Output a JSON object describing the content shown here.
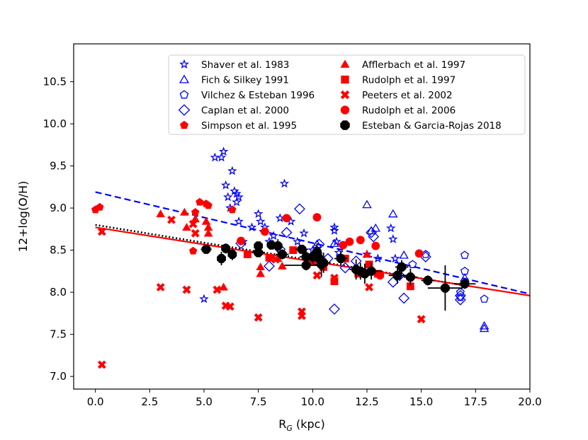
{
  "chart_data": {
    "type": "scatter",
    "title": "",
    "xlabel_main": "R",
    "xlabel_sub": "G",
    "xlabel_unit": " (kpc)",
    "ylabel": "12+log(O/H)",
    "xlim": [
      -1.0,
      20.0
    ],
    "ylim": [
      6.85,
      10.95
    ],
    "xticks": [
      0.0,
      2.5,
      5.0,
      7.5,
      10.0,
      12.5,
      15.0,
      17.5,
      20.0
    ],
    "xtick_labels": [
      "0.0",
      "2.5",
      "5.0",
      "7.5",
      "10.0",
      "12.5",
      "15.0",
      "17.5",
      "20.0"
    ],
    "yticks": [
      7.0,
      7.5,
      8.0,
      8.5,
      9.0,
      9.5,
      10.0,
      10.5
    ],
    "ytick_labels": [
      "7.0",
      "7.5",
      "8.0",
      "8.5",
      "9.0",
      "9.5",
      "10.0",
      "10.5"
    ],
    "legend_position": "top-center",
    "series": [
      {
        "name": "Shaver et al. 1983",
        "marker": "star",
        "color": "#0000ff",
        "filled": false,
        "points": [
          [
            5.5,
            9.6
          ],
          [
            5.8,
            9.6
          ],
          [
            5.9,
            9.67
          ],
          [
            6.0,
            9.27
          ],
          [
            6.1,
            9.13
          ],
          [
            6.2,
            9.0
          ],
          [
            6.3,
            9.44
          ],
          [
            6.4,
            9.2
          ],
          [
            6.5,
            9.17
          ],
          [
            6.5,
            9.07
          ],
          [
            6.6,
            9.13
          ],
          [
            6.6,
            8.84
          ],
          [
            6.8,
            8.6
          ],
          [
            7.2,
            8.77
          ],
          [
            7.5,
            8.93
          ],
          [
            7.6,
            8.84
          ],
          [
            7.8,
            8.77
          ],
          [
            8.0,
            8.6
          ],
          [
            8.2,
            8.67
          ],
          [
            8.5,
            8.88
          ],
          [
            8.7,
            9.29
          ],
          [
            9.0,
            8.84
          ],
          [
            9.3,
            8.6
          ],
          [
            9.6,
            8.7
          ],
          [
            10.0,
            8.5
          ],
          [
            10.2,
            8.4
          ],
          [
            11.0,
            8.73
          ],
          [
            11.0,
            8.77
          ],
          [
            11.1,
            8.6
          ],
          [
            11.2,
            8.47
          ],
          [
            11.3,
            8.41
          ],
          [
            12.5,
            8.45
          ],
          [
            13.0,
            8.4
          ],
          [
            13.6,
            8.76
          ],
          [
            13.7,
            8.63
          ],
          [
            13.8,
            8.4
          ],
          [
            5.0,
            7.92
          ]
        ]
      },
      {
        "name": "Fich & Silkey 1991",
        "marker": "triangle",
        "color": "#0000ff",
        "filled": false,
        "points": [
          [
            12.5,
            9.04
          ],
          [
            12.7,
            8.73
          ],
          [
            12.9,
            8.76
          ],
          [
            13.7,
            8.93
          ],
          [
            14.2,
            8.44
          ],
          [
            17.0,
            8.17
          ],
          [
            17.9,
            7.6
          ],
          [
            17.9,
            7.57
          ],
          [
            11.0,
            8.58
          ],
          [
            10.2,
            8.57
          ]
        ]
      },
      {
        "name": "Vilchez & Esteban 1996",
        "marker": "pentagon",
        "color": "#0000ff",
        "filled": false,
        "points": [
          [
            17.0,
            8.44
          ],
          [
            17.0,
            8.25
          ],
          [
            16.8,
            8.0
          ],
          [
            17.9,
            7.92
          ],
          [
            16.8,
            7.94
          ],
          [
            15.2,
            8.45
          ],
          [
            14.6,
            8.33
          ],
          [
            12.5,
            8.25
          ]
        ]
      },
      {
        "name": "Caplan et al. 2000",
        "marker": "diamond",
        "color": "#0000ff",
        "filled": false,
        "points": [
          [
            6.7,
            8.58
          ],
          [
            8.0,
            8.31
          ],
          [
            8.5,
            8.51
          ],
          [
            8.8,
            8.71
          ],
          [
            9.4,
            8.99
          ],
          [
            10.3,
            8.57
          ],
          [
            10.7,
            8.4
          ],
          [
            11.0,
            7.8
          ],
          [
            11.5,
            8.29
          ],
          [
            12.7,
            8.71
          ],
          [
            12.8,
            8.66
          ],
          [
            13.7,
            8.12
          ],
          [
            14.2,
            7.93
          ],
          [
            15.2,
            8.42
          ],
          [
            16.8,
            7.91
          ],
          [
            16.8,
            7.96
          ],
          [
            14.0,
            8.2
          ],
          [
            12.0,
            8.37
          ]
        ]
      },
      {
        "name": "Simpson et al. 1995",
        "marker": "pentagon",
        "color": "#ff0000",
        "filled": true,
        "points": [
          [
            0.0,
            8.98
          ],
          [
            0.2,
            9.01
          ],
          [
            4.5,
            8.49
          ],
          [
            4.6,
            8.95
          ],
          [
            4.8,
            9.07
          ],
          [
            5.1,
            9.05
          ],
          [
            5.2,
            9.03
          ],
          [
            6.3,
            8.98
          ]
        ]
      },
      {
        "name": "Afflerbach et al. 1997",
        "marker": "triangle",
        "color": "#ff0000",
        "filled": true,
        "points": [
          [
            3.0,
            8.93
          ],
          [
            4.1,
            8.95
          ],
          [
            4.2,
            8.77
          ],
          [
            4.6,
            8.87
          ],
          [
            5.1,
            8.84
          ],
          [
            5.2,
            8.7
          ],
          [
            5.2,
            8.77
          ],
          [
            5.9,
            8.06
          ],
          [
            7.6,
            8.22
          ],
          [
            7.6,
            8.3
          ],
          [
            8.4,
            8.4
          ],
          [
            8.6,
            8.31
          ],
          [
            12.5,
            8.45
          ]
        ]
      },
      {
        "name": "Rudolph et al. 1997",
        "marker": "square",
        "color": "#ff0000",
        "filled": true,
        "points": [
          [
            7.0,
            8.45
          ],
          [
            8.0,
            8.41
          ],
          [
            9.1,
            8.5
          ],
          [
            10.0,
            8.37
          ],
          [
            10.5,
            8.3
          ],
          [
            11.0,
            8.13
          ],
          [
            11.5,
            8.4
          ],
          [
            12.1,
            8.22
          ],
          [
            12.6,
            8.33
          ],
          [
            14.5,
            8.07
          ],
          [
            13.0,
            8.22
          ]
        ]
      },
      {
        "name": "Peeters et al. 2002",
        "marker": "x",
        "color": "#ff0000",
        "filled": true,
        "points": [
          [
            0.3,
            8.72
          ],
          [
            0.3,
            7.14
          ],
          [
            3.0,
            8.06
          ],
          [
            3.5,
            8.86
          ],
          [
            4.2,
            8.03
          ],
          [
            4.5,
            8.81
          ],
          [
            4.6,
            8.7
          ],
          [
            5.6,
            8.03
          ],
          [
            6.0,
            7.84
          ],
          [
            6.2,
            7.83
          ],
          [
            7.5,
            7.7
          ],
          [
            8.3,
            8.39
          ],
          [
            9.5,
            7.77
          ],
          [
            9.5,
            7.72
          ],
          [
            10.2,
            8.2
          ],
          [
            11.0,
            8.17
          ],
          [
            12.6,
            8.06
          ],
          [
            15.0,
            7.68
          ]
        ]
      },
      {
        "name": "Rudolph et al. 2006",
        "marker": "circle",
        "color": "#ff0000",
        "filled": true,
        "points": [
          [
            6.7,
            8.61
          ],
          [
            7.8,
            8.72
          ],
          [
            8.8,
            8.88
          ],
          [
            10.2,
            8.89
          ],
          [
            11.4,
            8.56
          ],
          [
            11.7,
            8.6
          ],
          [
            12.2,
            8.62
          ],
          [
            12.9,
            8.55
          ],
          [
            14.9,
            8.46
          ],
          [
            13.1,
            8.2
          ]
        ]
      },
      {
        "name": "Esteban & Garcia-Rojas 2018",
        "marker": "octagon",
        "color": "#000000",
        "filled": true,
        "errorbars": true,
        "points": [
          [
            5.1,
            8.51,
            0.25,
            0.05
          ],
          [
            5.8,
            8.4,
            0.2,
            0.08
          ],
          [
            6.0,
            8.52,
            0.15,
            0.06
          ],
          [
            6.3,
            8.45,
            0.2,
            0.07
          ],
          [
            7.5,
            8.47,
            0.3,
            0.05
          ],
          [
            7.5,
            8.55,
            0.2,
            0.05
          ],
          [
            8.1,
            8.56,
            0.2,
            0.05
          ],
          [
            8.4,
            8.55,
            0.2,
            0.08
          ],
          [
            8.6,
            8.45,
            0.3,
            0.06
          ],
          [
            9.5,
            8.51,
            0.3,
            0.05
          ],
          [
            9.7,
            8.42,
            0.3,
            0.08
          ],
          [
            9.7,
            8.32,
            1.0,
            0.06
          ],
          [
            10.0,
            8.42,
            0.3,
            0.08
          ],
          [
            10.2,
            8.48,
            0.2,
            0.1
          ],
          [
            10.3,
            8.4,
            0.3,
            0.1
          ],
          [
            10.4,
            8.33,
            0.3,
            0.15
          ],
          [
            10.5,
            8.35,
            0.3,
            0.12
          ],
          [
            11.3,
            8.4,
            0.3,
            0.08
          ],
          [
            12.0,
            8.27,
            0.3,
            0.12
          ],
          [
            12.2,
            8.25,
            0.3,
            0.1
          ],
          [
            12.4,
            8.22,
            0.4,
            0.12
          ],
          [
            12.7,
            8.25,
            0.5,
            0.1
          ],
          [
            13.9,
            8.2,
            0.4,
            0.1
          ],
          [
            14.1,
            8.3,
            0.3,
            0.08
          ],
          [
            14.5,
            8.18,
            0.3,
            0.1
          ],
          [
            15.3,
            8.14,
            0.3,
            0.06
          ],
          [
            16.1,
            8.05,
            0.8,
            0.27
          ],
          [
            17.0,
            8.1,
            0.5,
            0.06
          ]
        ]
      }
    ],
    "fit_lines": [
      {
        "name": "blue-dashed-fit",
        "style": "dashed",
        "color": "#0000ff",
        "x": [
          0.0,
          20.0
        ],
        "y": [
          9.19,
          7.98
        ]
      },
      {
        "name": "black-dotted-fit",
        "style": "dotted",
        "color": "#000000",
        "x": [
          0.0,
          17.0
        ],
        "y": [
          8.8,
          8.08
        ]
      },
      {
        "name": "red-solid-fit",
        "style": "solid",
        "color": "#ff0000",
        "x": [
          0.0,
          20.0
        ],
        "y": [
          8.77,
          7.96
        ]
      }
    ]
  }
}
